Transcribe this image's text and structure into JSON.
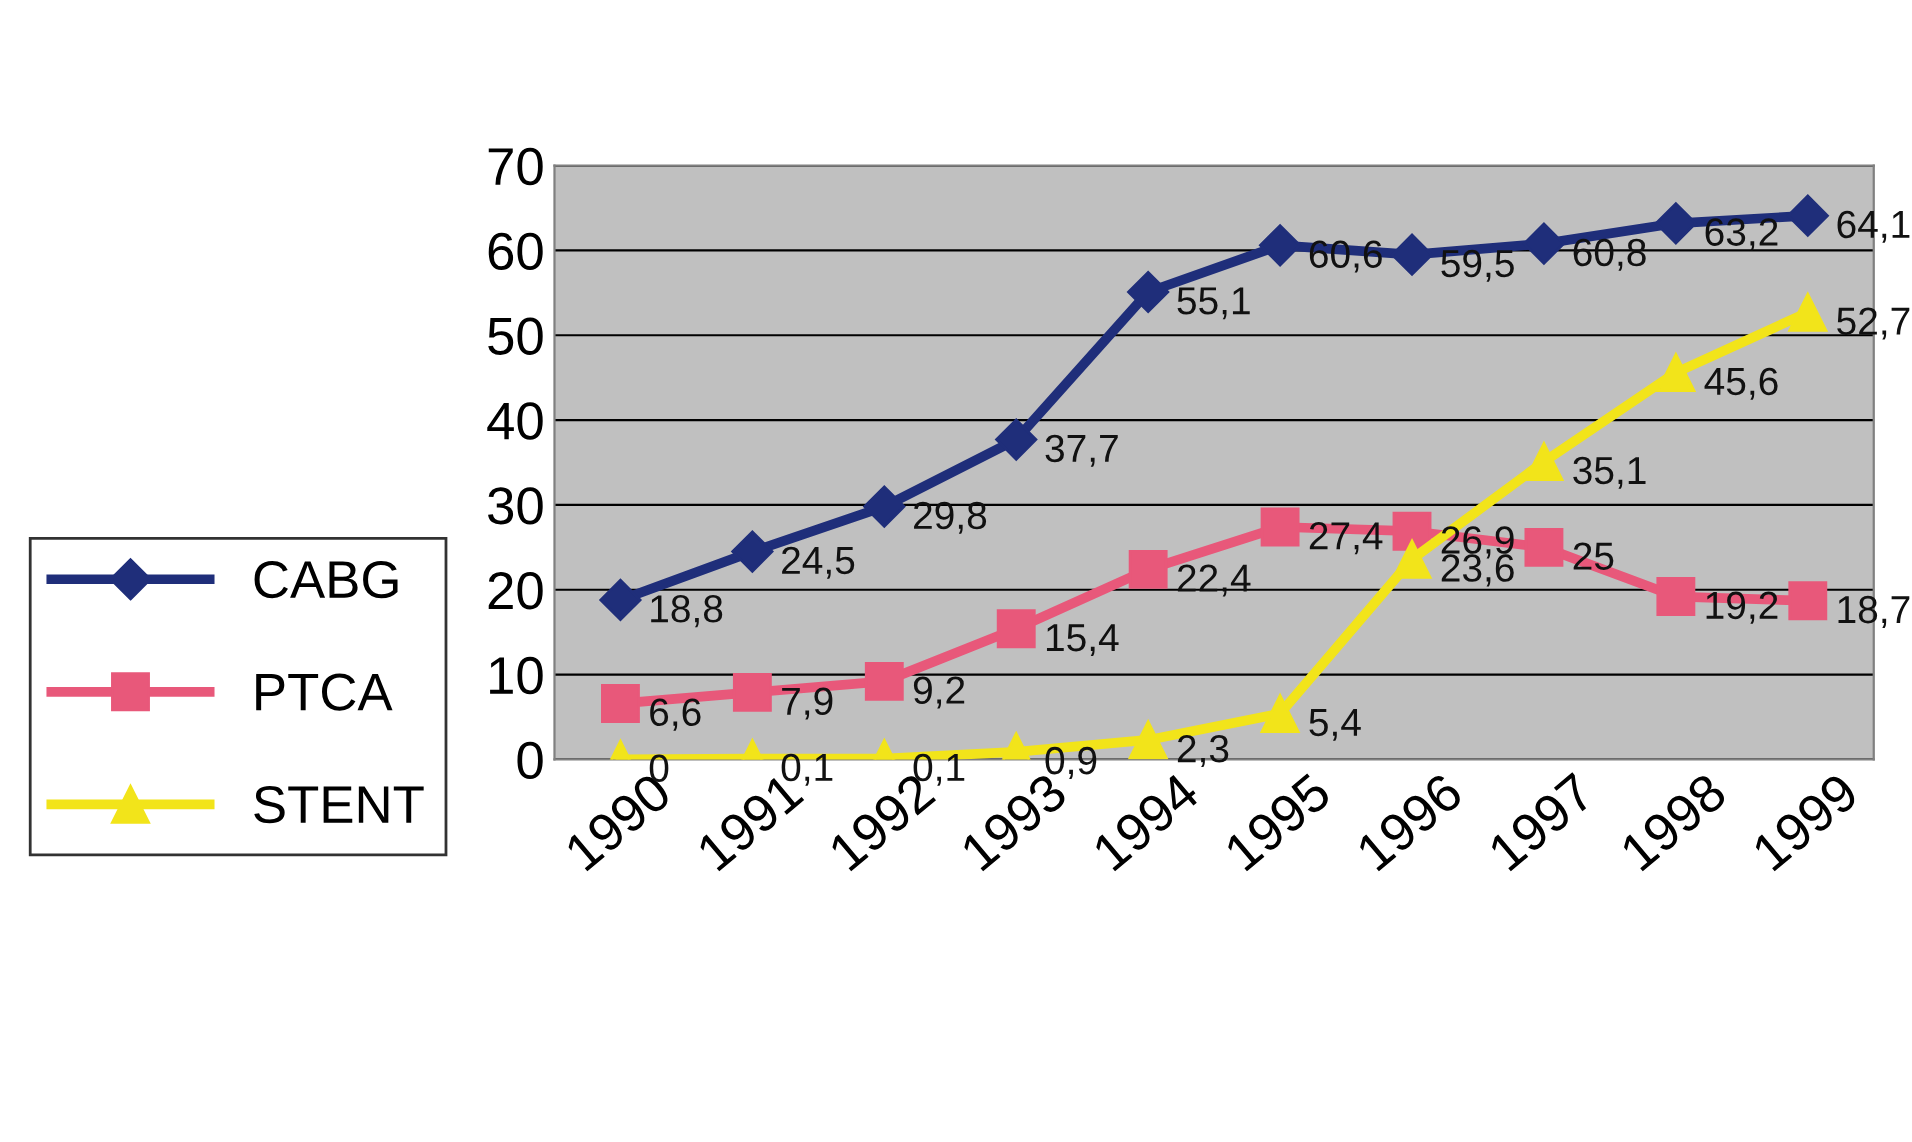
{
  "chart_data": {
    "type": "line",
    "categories": [
      "1990",
      "1991",
      "1992",
      "1993",
      "1994",
      "1995",
      "1996",
      "1997",
      "1998",
      "1999"
    ],
    "series": [
      {
        "name": "CABG",
        "color": "#1f2e7a",
        "marker": "diamond",
        "values": [
          18.8,
          24.5,
          29.8,
          37.7,
          55.1,
          60.6,
          59.5,
          60.8,
          63.2,
          64.1
        ],
        "value_labels": [
          "18,8",
          "24,5",
          "29,8",
          "37,7",
          "55,1",
          "60,6",
          "59,5",
          "60,8",
          "63,2",
          "64,1"
        ]
      },
      {
        "name": "PTCA",
        "color": "#e8587a",
        "marker": "square",
        "values": [
          6.6,
          7.9,
          9.2,
          15.4,
          22.4,
          27.4,
          26.9,
          25,
          19.2,
          18.7
        ],
        "value_labels": [
          "6,6",
          "7,9",
          "9,2",
          "15,4",
          "22,4",
          "27,4",
          "26,9",
          "25",
          "19,2",
          "18,7"
        ]
      },
      {
        "name": "STENT",
        "color": "#f2e41a",
        "marker": "triangle",
        "values": [
          0,
          0.1,
          0.1,
          0.9,
          2.3,
          5.4,
          23.6,
          35.1,
          45.6,
          52.7
        ],
        "value_labels": [
          "0",
          "0,1",
          "0,1",
          "0,9",
          "2,3",
          "5,4",
          "23,6",
          "35,1",
          "45,6",
          "52,7"
        ]
      }
    ],
    "ylim": [
      0,
      70
    ],
    "yticks": [
      0,
      10,
      20,
      30,
      40,
      50,
      60,
      70
    ],
    "grid": "y",
    "legend": "left"
  }
}
